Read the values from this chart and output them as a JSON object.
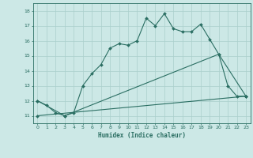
{
  "xlabel": "Humidex (Indice chaleur)",
  "ylabel": "",
  "background_color": "#cce8e6",
  "line_color": "#2a6e62",
  "grid_color": "#aacfcc",
  "xlim": [
    -0.5,
    23.5
  ],
  "ylim": [
    10.5,
    18.5
  ],
  "yticks": [
    11,
    12,
    13,
    14,
    15,
    16,
    17,
    18
  ],
  "xticks": [
    0,
    1,
    2,
    3,
    4,
    5,
    6,
    7,
    8,
    9,
    10,
    11,
    12,
    13,
    14,
    15,
    16,
    17,
    18,
    19,
    20,
    21,
    22,
    23
  ],
  "line1_x": [
    0,
    1,
    2,
    3,
    4,
    5,
    6,
    7,
    8,
    9,
    10,
    11,
    12,
    13,
    14,
    15,
    16,
    17,
    18,
    19,
    20,
    21,
    22,
    23
  ],
  "line1_y": [
    12.0,
    11.7,
    11.2,
    11.0,
    11.2,
    13.0,
    13.8,
    14.4,
    15.5,
    15.8,
    15.7,
    16.0,
    17.5,
    17.0,
    17.8,
    16.8,
    16.6,
    16.6,
    17.1,
    16.1,
    15.1,
    13.0,
    12.3,
    12.3
  ],
  "line2_x": [
    0,
    3,
    20,
    23
  ],
  "line2_y": [
    12.0,
    11.0,
    15.1,
    12.3
  ],
  "line3_x": [
    0,
    23
  ],
  "line3_y": [
    11.0,
    12.3
  ]
}
